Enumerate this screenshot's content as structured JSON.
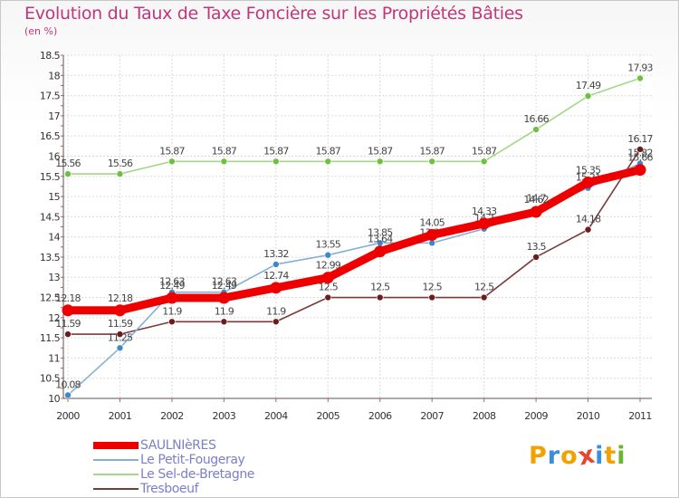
{
  "chart_data": {
    "type": "line",
    "title": "Evolution du Taux de Taxe Foncière sur les Propriétés Bâties",
    "subtitle": "(en %)",
    "xlabel": "",
    "ylabel": "",
    "ylim": [
      10,
      18.5
    ],
    "yticks": [
      "10",
      "10.5",
      "11",
      "11.5",
      "12",
      "12.5",
      "13",
      "13.5",
      "14",
      "14.5",
      "15",
      "15.5",
      "16",
      "16.5",
      "17",
      "17.5",
      "18",
      "18.5"
    ],
    "categories": [
      "2000",
      "2001",
      "2002",
      "2003",
      "2004",
      "2005",
      "2006",
      "2007",
      "2008",
      "2009",
      "2010",
      "2011"
    ],
    "grid": true,
    "legend_position": "bottom-left",
    "series": [
      {
        "name": "Le Sel-de-Bretagne",
        "color": "#a4d786",
        "marker_color": "#6dc042",
        "values": [
          15.56,
          15.56,
          15.87,
          15.87,
          15.87,
          15.87,
          15.87,
          15.87,
          15.87,
          16.66,
          17.49,
          17.93
        ],
        "labels": [
          "15.56",
          "15.56",
          "15.87",
          "15.87",
          "15.87",
          "15.87",
          "15.87",
          "15.87",
          "15.87",
          "16.66",
          "17.49",
          "17.93"
        ]
      },
      {
        "name": "Tresboeuf",
        "color": "#7a3a3a",
        "marker_color": "#6e1b1b",
        "values": [
          11.59,
          11.59,
          11.9,
          11.9,
          11.9,
          12.5,
          12.5,
          12.5,
          12.5,
          13.5,
          14.18,
          16.17
        ],
        "labels": [
          "11.59",
          "11.59",
          "11.9",
          "11.9",
          "11.9",
          "12.5",
          "12.5",
          "12.5",
          "12.5",
          "13.5",
          "14.18",
          "16.17"
        ]
      },
      {
        "name": "Le Petit-Fougeray",
        "color": "#84b0d6",
        "marker_color": "#3d88cc",
        "values": [
          10.08,
          11.25,
          12.63,
          12.63,
          13.32,
          13.55,
          13.85,
          13.85,
          14.2,
          14.7,
          15.21,
          15.82
        ],
        "labels": [
          "10.08",
          "11.25",
          "12.63",
          "12.63",
          "13.32",
          "13.55",
          "13.85",
          "13.85",
          "14.2",
          "14.7",
          "15.21",
          "15.82"
        ]
      },
      {
        "name": "SAULNIèRES",
        "color": "#ee0000",
        "marker_color": "#ee0000",
        "values": [
          12.18,
          12.18,
          12.49,
          12.49,
          12.74,
          12.99,
          13.64,
          14.05,
          14.33,
          14.62,
          15.35,
          15.66
        ],
        "labels": [
          "12.18",
          "12.18",
          "12.49",
          "12.49",
          "12.74",
          "12.99",
          "13.64",
          "14.05",
          "14.33",
          "14.62",
          "15.35",
          "15.66"
        ]
      }
    ]
  },
  "legend": {
    "items": [
      {
        "label": "SAULNIèRES",
        "color": "#ee0000"
      },
      {
        "label": "Le Petit-Fougeray",
        "color": "#84b0d6"
      },
      {
        "label": "Le Sel-de-Bretagne",
        "color": "#a4d786"
      },
      {
        "label": "Tresboeuf",
        "color": "#7a3a3a"
      }
    ]
  },
  "logo": {
    "text": "Proxiti",
    "colors": [
      "#f2a100",
      "#3a8fd8",
      "#f2a100",
      "#e6452e",
      "#3a8fd8",
      "#f2a100",
      "#6ab533"
    ]
  }
}
